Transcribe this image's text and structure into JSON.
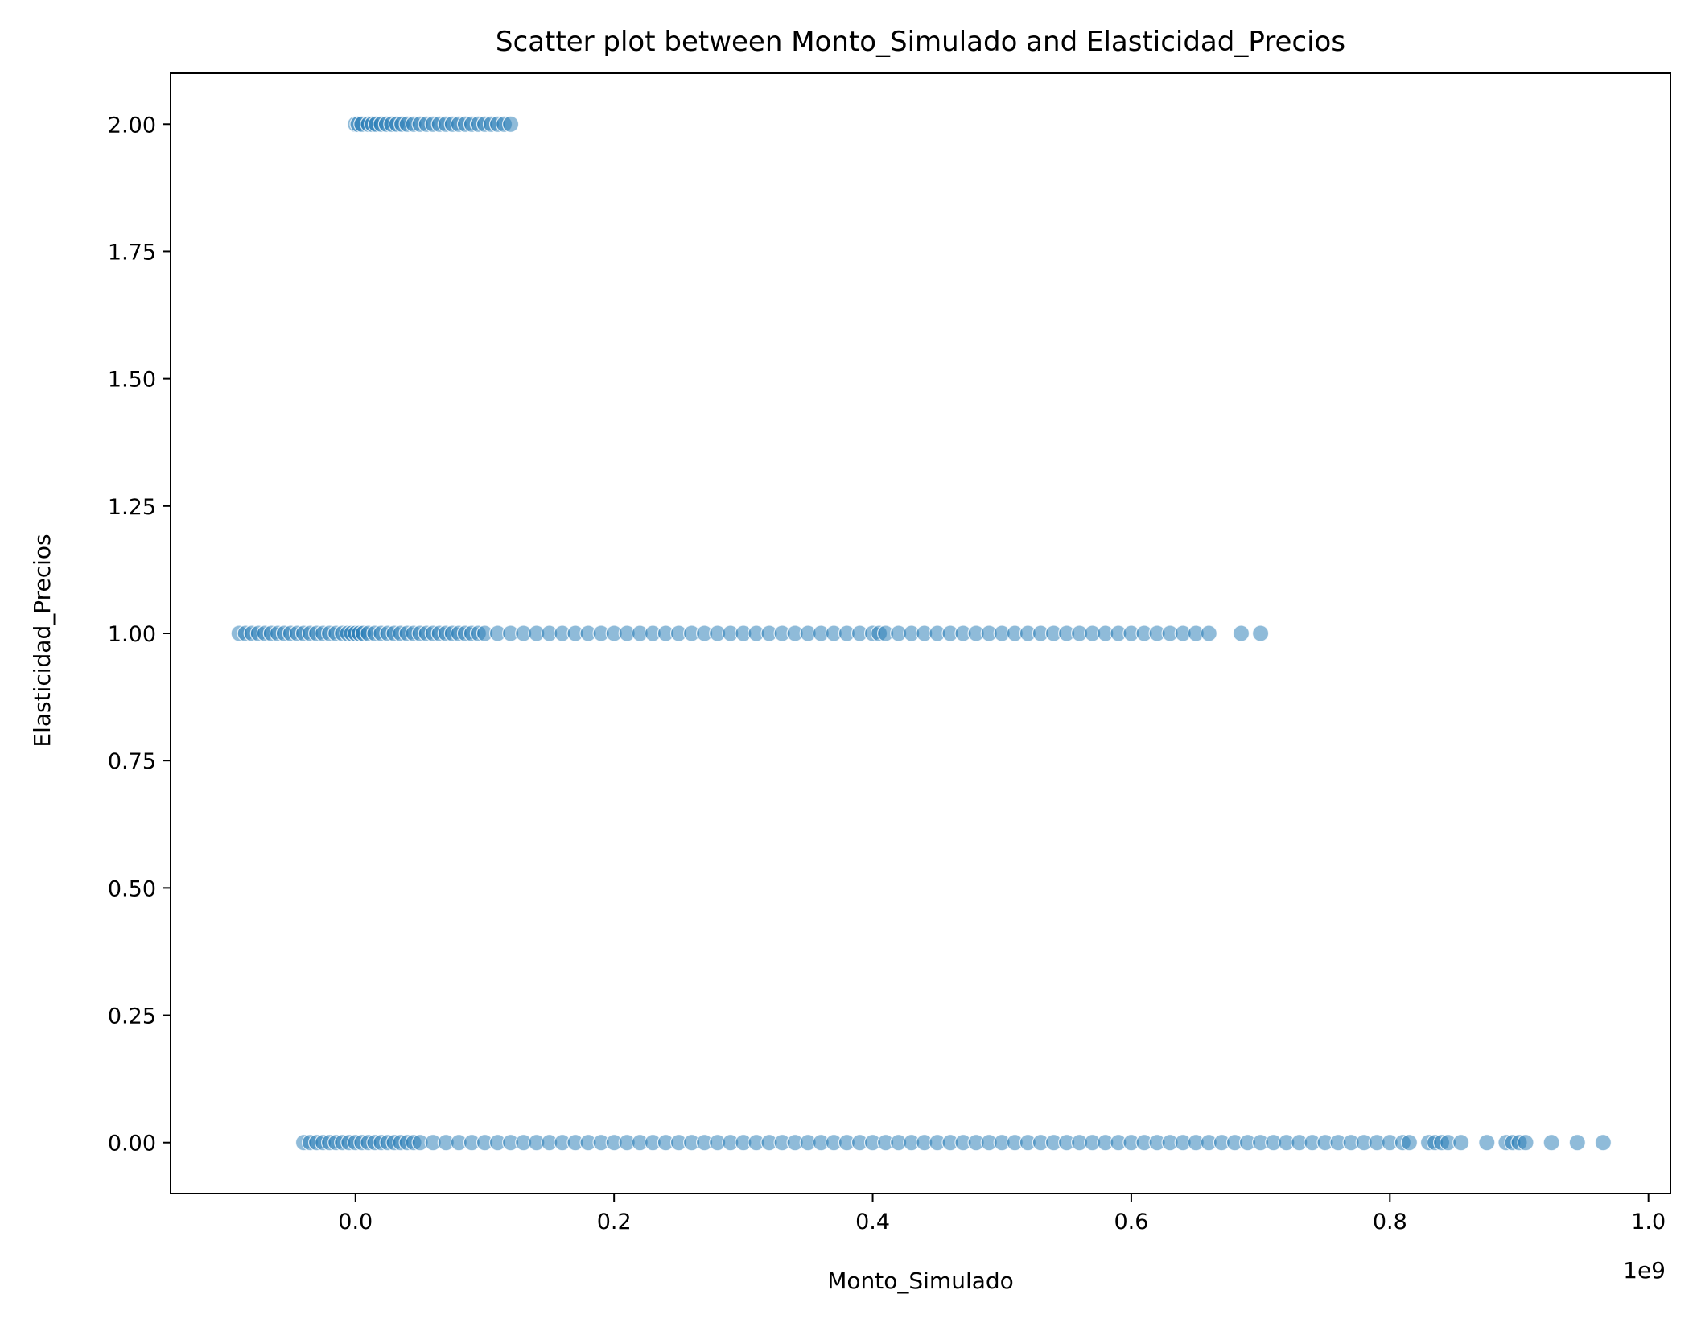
{
  "chart_data": {
    "type": "scatter",
    "title": "Scatter plot between Monto_Simulado and Elasticidad_Precios",
    "xlabel": "Monto_Simulado",
    "ylabel": "Elasticidad_Precios",
    "x_offset_label": "1e9",
    "xlim": [
      -0.143,
      1.017
    ],
    "ylim": [
      -0.1,
      2.1
    ],
    "x_ticks": [
      0.0,
      0.2,
      0.4,
      0.6,
      0.8,
      1.0
    ],
    "x_tick_labels": [
      "0.0",
      "0.2",
      "0.4",
      "0.6",
      "0.8",
      "1.0"
    ],
    "y_ticks": [
      0.0,
      0.25,
      0.5,
      0.75,
      1.0,
      1.25,
      1.5,
      1.75,
      2.0
    ],
    "y_tick_labels": [
      "0.00",
      "0.25",
      "0.50",
      "0.75",
      "1.00",
      "1.25",
      "1.50",
      "1.75",
      "2.00"
    ],
    "grid": false,
    "marker_color": "#1f77b4",
    "marker_alpha": 0.5,
    "series": [
      {
        "y": 2.0,
        "x": [
          0.0,
          0.002,
          0.005,
          0.01,
          0.013,
          0.016,
          0.02,
          0.024,
          0.028,
          0.032,
          0.036,
          0.04,
          0.045,
          0.05,
          0.055,
          0.06,
          0.065,
          0.07,
          0.075,
          0.08,
          0.085,
          0.09,
          0.095,
          0.1,
          0.105,
          0.11,
          0.115,
          0.12
        ]
      },
      {
        "y": 1.0,
        "x": [
          -0.09,
          -0.085,
          -0.08,
          -0.075,
          -0.07,
          -0.065,
          -0.06,
          -0.055,
          -0.05,
          -0.045,
          -0.04,
          -0.035,
          -0.03,
          -0.025,
          -0.02,
          -0.015,
          -0.01,
          -0.006,
          -0.003,
          0.0,
          0.003,
          0.006,
          0.01,
          0.015,
          0.02,
          0.025,
          0.03,
          0.035,
          0.04,
          0.045,
          0.05,
          0.055,
          0.06,
          0.065,
          0.07,
          0.075,
          0.08,
          0.085,
          0.09,
          0.095,
          0.1,
          0.11,
          0.12,
          0.13,
          0.14,
          0.15,
          0.16,
          0.17,
          0.18,
          0.19,
          0.2,
          0.21,
          0.22,
          0.23,
          0.24,
          0.25,
          0.26,
          0.27,
          0.28,
          0.29,
          0.3,
          0.31,
          0.32,
          0.33,
          0.34,
          0.35,
          0.36,
          0.37,
          0.38,
          0.39,
          0.4,
          0.405,
          0.41,
          0.42,
          0.43,
          0.44,
          0.45,
          0.46,
          0.47,
          0.48,
          0.49,
          0.5,
          0.51,
          0.52,
          0.53,
          0.54,
          0.55,
          0.56,
          0.57,
          0.58,
          0.59,
          0.6,
          0.61,
          0.62,
          0.63,
          0.64,
          0.65,
          0.66,
          0.685,
          0.7
        ]
      },
      {
        "y": 0.0,
        "x": [
          -0.04,
          -0.035,
          -0.03,
          -0.025,
          -0.02,
          -0.015,
          -0.01,
          -0.005,
          0.0,
          0.005,
          0.01,
          0.015,
          0.02,
          0.025,
          0.03,
          0.035,
          0.04,
          0.045,
          0.05,
          0.06,
          0.07,
          0.08,
          0.09,
          0.1,
          0.11,
          0.12,
          0.13,
          0.14,
          0.15,
          0.16,
          0.17,
          0.18,
          0.19,
          0.2,
          0.21,
          0.22,
          0.23,
          0.24,
          0.25,
          0.26,
          0.27,
          0.28,
          0.29,
          0.3,
          0.31,
          0.32,
          0.33,
          0.34,
          0.35,
          0.36,
          0.37,
          0.38,
          0.39,
          0.4,
          0.41,
          0.42,
          0.43,
          0.44,
          0.45,
          0.46,
          0.47,
          0.48,
          0.49,
          0.5,
          0.51,
          0.52,
          0.53,
          0.54,
          0.55,
          0.56,
          0.57,
          0.58,
          0.59,
          0.6,
          0.61,
          0.62,
          0.63,
          0.64,
          0.65,
          0.66,
          0.67,
          0.68,
          0.69,
          0.7,
          0.71,
          0.72,
          0.73,
          0.74,
          0.75,
          0.76,
          0.77,
          0.78,
          0.79,
          0.8,
          0.81,
          0.815,
          0.83,
          0.835,
          0.84,
          0.845,
          0.855,
          0.875,
          0.89,
          0.895,
          0.9,
          0.905,
          0.925,
          0.945,
          0.965
        ]
      }
    ]
  }
}
